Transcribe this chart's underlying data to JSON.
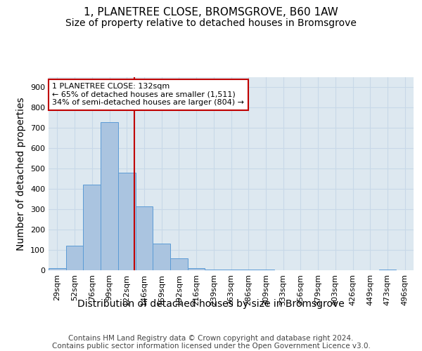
{
  "title_line1": "1, PLANETREE CLOSE, BROMSGROVE, B60 1AW",
  "title_line2": "Size of property relative to detached houses in Bromsgrove",
  "xlabel": "Distribution of detached houses by size in Bromsgrove",
  "ylabel": "Number of detached properties",
  "footnote": "Contains HM Land Registry data © Crown copyright and database right 2024.\nContains public sector information licensed under the Open Government Licence v3.0.",
  "bin_labels": [
    "29sqm",
    "52sqm",
    "76sqm",
    "99sqm",
    "122sqm",
    "146sqm",
    "169sqm",
    "192sqm",
    "216sqm",
    "239sqm",
    "263sqm",
    "286sqm",
    "309sqm",
    "333sqm",
    "356sqm",
    "379sqm",
    "403sqm",
    "426sqm",
    "449sqm",
    "473sqm",
    "496sqm"
  ],
  "bar_values": [
    10,
    120,
    420,
    730,
    480,
    315,
    130,
    60,
    10,
    5,
    5,
    5,
    5,
    0,
    0,
    0,
    0,
    0,
    0,
    5,
    0
  ],
  "bar_color": "#aac4e0",
  "bar_edge_color": "#5b9bd5",
  "vline_color": "#c00000",
  "annotation_text": "1 PLANETREE CLOSE: 132sqm\n← 65% of detached houses are smaller (1,511)\n34% of semi-detached houses are larger (804) →",
  "annotation_box_color": "#ffffff",
  "annotation_box_edge": "#c00000",
  "ylim": [
    0,
    950
  ],
  "yticks": [
    0,
    100,
    200,
    300,
    400,
    500,
    600,
    700,
    800,
    900
  ],
  "grid_color": "#c8d8e8",
  "background_color": "#dde8f0",
  "title_fontsize": 11,
  "subtitle_fontsize": 10,
  "axis_label_fontsize": 10,
  "tick_fontsize": 8,
  "footnote_fontsize": 7.5
}
